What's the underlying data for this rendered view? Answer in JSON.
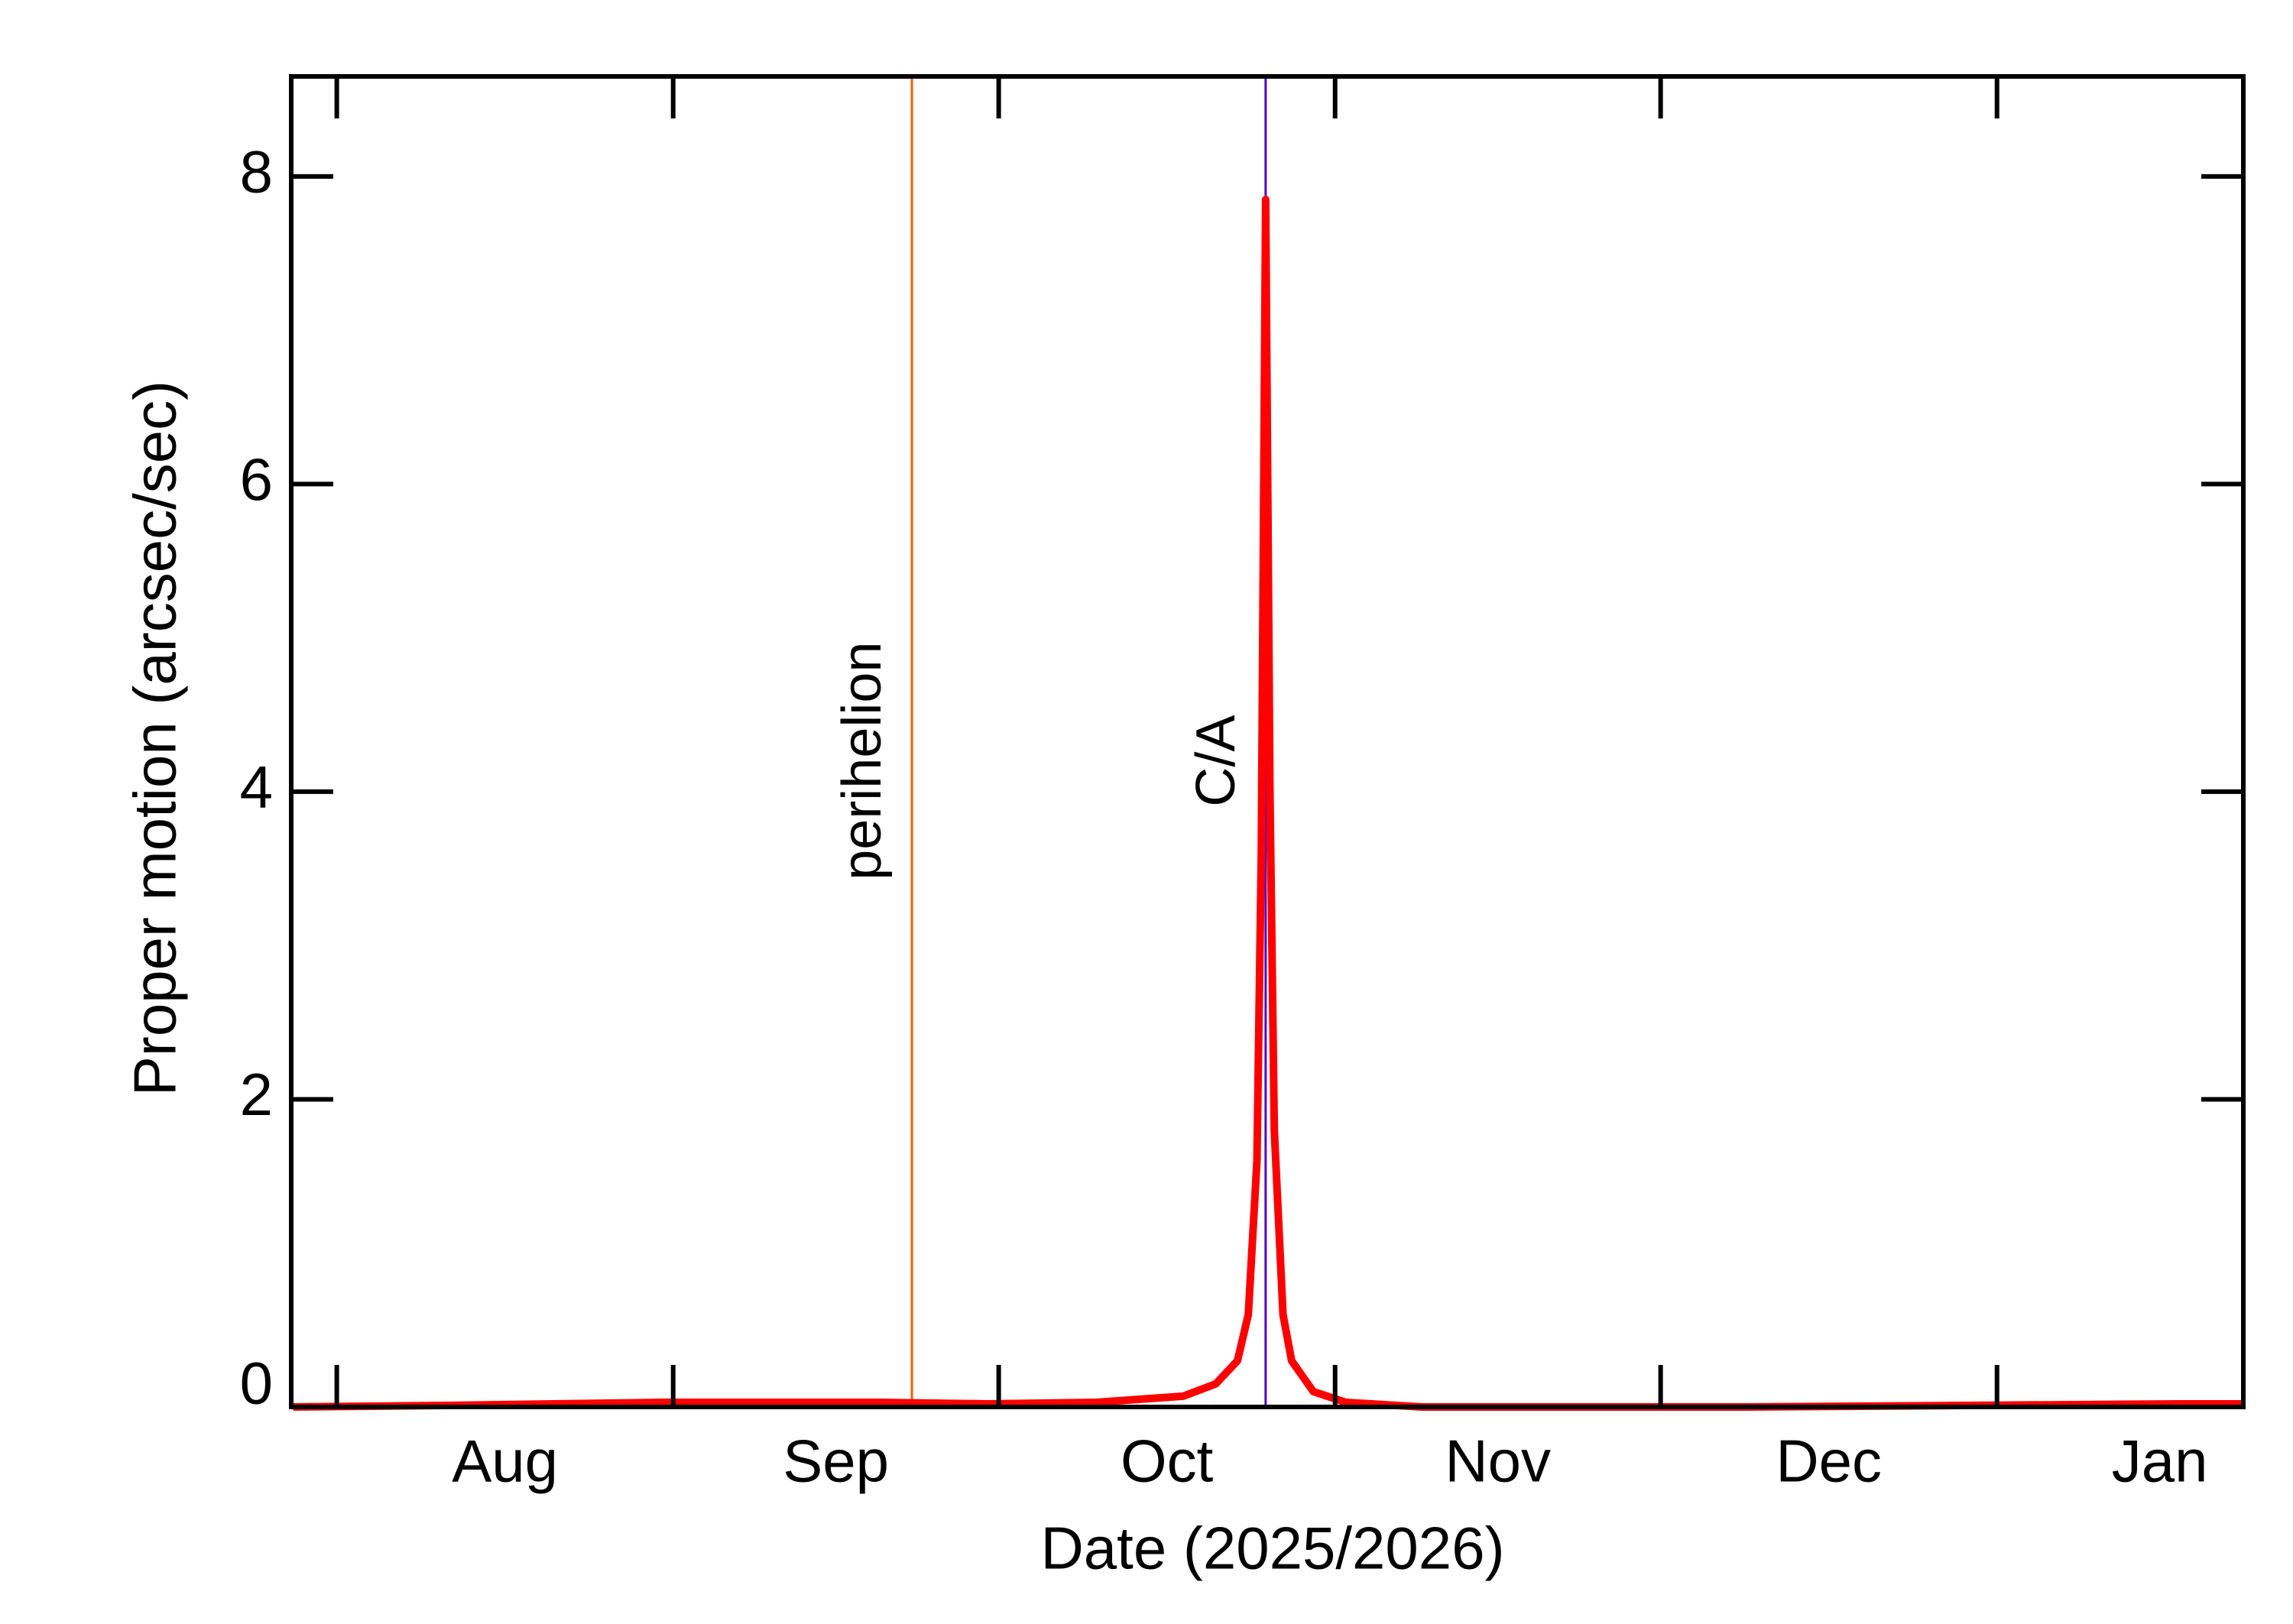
{
  "chart_data": {
    "type": "line",
    "x_label": "Date (2025/2026)",
    "y_label": "Proper motion (arcsec/sec)",
    "x": [
      -4,
      10,
      20,
      30,
      40,
      50,
      60,
      70,
      78,
      81,
      83,
      84,
      84.8,
      85.2,
      85.6,
      86,
      86.4,
      87.2,
      88,
      90,
      93,
      100,
      110,
      130,
      150,
      170,
      175.7
    ],
    "series": [
      {
        "color": "#ff0000",
        "values": [
          0.0,
          0.01,
          0.02,
          0.03,
          0.03,
          0.03,
          0.02,
          0.03,
          0.07,
          0.15,
          0.3,
          0.6,
          1.6,
          3.6,
          7.85,
          4.0,
          1.8,
          0.6,
          0.3,
          0.1,
          0.03,
          0.0,
          0.0,
          0.0,
          0.01,
          0.02,
          0.02
        ]
      }
    ],
    "xlim": [
      -4.2,
      175.7
    ],
    "ylim": [
      0,
      8.65
    ],
    "yticks": [
      0,
      2,
      4,
      6,
      8
    ],
    "xticks": [
      0,
      31,
      61,
      92,
      122,
      153
    ],
    "xtick_labels": [
      {
        "value": 15.5,
        "label": "Aug"
      },
      {
        "value": 46,
        "label": "Sep"
      },
      {
        "value": 76.5,
        "label": "Oct"
      },
      {
        "value": 107,
        "label": "Nov"
      },
      {
        "value": 137.5,
        "label": "Dec"
      },
      {
        "value": 168,
        "label": "Jan"
      }
    ],
    "annotations": [
      {
        "label": "perihelion",
        "x": 53,
        "color": "#ff5a00"
      },
      {
        "label": "C/A",
        "x": 85.6,
        "color": "#5000c8"
      }
    ]
  }
}
